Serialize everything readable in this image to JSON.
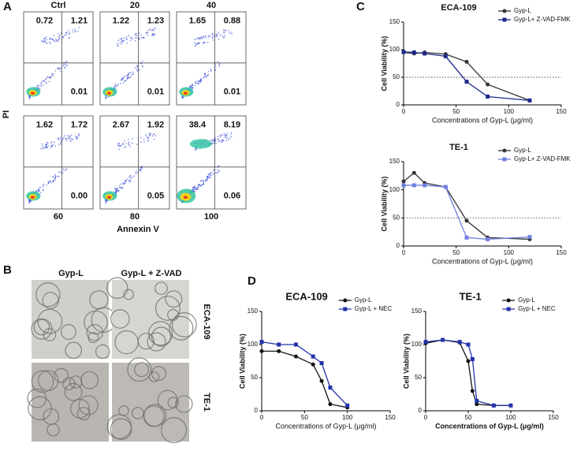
{
  "panel_labels": [
    "A",
    "B",
    "C",
    "D"
  ],
  "flow": {
    "y_label": "PI",
    "x_label": "Annexin V",
    "plots": [
      {
        "label": "Ctrl",
        "values": [
          "0.72",
          "1.21",
          "0.01"
        ]
      },
      {
        "label": "20",
        "values": [
          "1.22",
          "1.23",
          "0.01"
        ]
      },
      {
        "label": "40",
        "values": [
          "1.65",
          "0.88",
          "0.01"
        ]
      },
      {
        "label": "60",
        "values": [
          "1.62",
          "1.72",
          "0.00"
        ]
      },
      {
        "label": "80",
        "values": [
          "2.67",
          "1.92",
          "0.05"
        ]
      },
      {
        "label": "100",
        "values": [
          "38.4",
          "8.19",
          "0.06"
        ]
      }
    ]
  },
  "microscopy": {
    "columns": [
      "Gyp-L",
      "Gyp-L + Z-VAD"
    ],
    "rows": [
      "ECA-109",
      "TE-1"
    ]
  },
  "chart_data": [
    {
      "type": "line",
      "title": "ECA-109",
      "x_label": "Concentrations of Gyp-L (μg/ml)",
      "y_label": "Cell Viability (%)",
      "xlim": [
        0,
        150
      ],
      "xticks": [
        0,
        50,
        100,
        150
      ],
      "ylim": [
        0,
        150
      ],
      "yticks": [
        0,
        50,
        100,
        150
      ],
      "reference_line": 50,
      "x": [
        0,
        10,
        20,
        40,
        60,
        80,
        120
      ],
      "series": [
        {
          "name": "Gyp-L",
          "color": "#333333",
          "marker": "circle",
          "values": [
            95,
            93,
            95,
            92,
            78,
            37,
            8
          ]
        },
        {
          "name": "Gyp-L+ Z-VAD-FMK",
          "color": "#1f2a8c",
          "marker": "square",
          "values": [
            96,
            95,
            93,
            88,
            42,
            15,
            8
          ]
        }
      ]
    },
    {
      "type": "line",
      "title": "TE-1",
      "x_label": "Concentrations of Gyp-L (μg/ml)",
      "y_label": "Cell Viability (%)",
      "xlim": [
        0,
        150
      ],
      "xticks": [
        0,
        50,
        100,
        150
      ],
      "ylim": [
        0,
        150
      ],
      "yticks": [
        0,
        50,
        100,
        150
      ],
      "reference_line": 50,
      "x": [
        0,
        10,
        20,
        40,
        60,
        80,
        120
      ],
      "series": [
        {
          "name": "Gyp-L",
          "color": "#333333",
          "marker": "circle",
          "values": [
            115,
            130,
            112,
            105,
            45,
            15,
            12
          ]
        },
        {
          "name": "Gyp-L+ Z-VAD-FMK",
          "color": "#6f7fe0",
          "marker": "square",
          "values": [
            108,
            108,
            108,
            105,
            15,
            12,
            16
          ]
        }
      ]
    },
    {
      "type": "line",
      "title": "ECA-109",
      "x_label": "Concentrations of Gyp-L (μg/ml)",
      "y_label": "Cell Viability (%)",
      "xlim": [
        0,
        150
      ],
      "xticks": [
        0,
        50,
        100,
        150
      ],
      "ylim": [
        0,
        150
      ],
      "yticks": [
        0,
        50,
        100,
        150
      ],
      "x": [
        0,
        20,
        40,
        60,
        70,
        80,
        100
      ],
      "series": [
        {
          "name": "Gyp-L",
          "color": "#111111",
          "marker": "circle",
          "values": [
            90,
            90,
            82,
            70,
            45,
            10,
            5
          ]
        },
        {
          "name": "Gyp-L + NEC",
          "color": "#2233aa",
          "marker": "square",
          "values": [
            104,
            100,
            100,
            82,
            72,
            35,
            8
          ]
        }
      ]
    },
    {
      "type": "line",
      "title": "TE-1",
      "x_label": "Concentrations of Gyp-L (μg/ml)",
      "y_label": "Cell Viability (%)",
      "xlim": [
        0,
        150
      ],
      "xticks": [
        0,
        50,
        100,
        150
      ],
      "ylim": [
        0,
        150
      ],
      "yticks": [
        0,
        50,
        100,
        150
      ],
      "x": [
        0,
        20,
        40,
        50,
        55,
        60,
        80,
        100
      ],
      "series": [
        {
          "name": "Gyp-L",
          "color": "#111111",
          "marker": "circle",
          "values": [
            102,
            107,
            103,
            75,
            30,
            10,
            8,
            8
          ]
        },
        {
          "name": "Gyp-L + NEC",
          "color": "#2233aa",
          "marker": "square",
          "values": [
            104,
            107,
            104,
            100,
            78,
            15,
            8,
            8
          ]
        }
      ]
    }
  ]
}
